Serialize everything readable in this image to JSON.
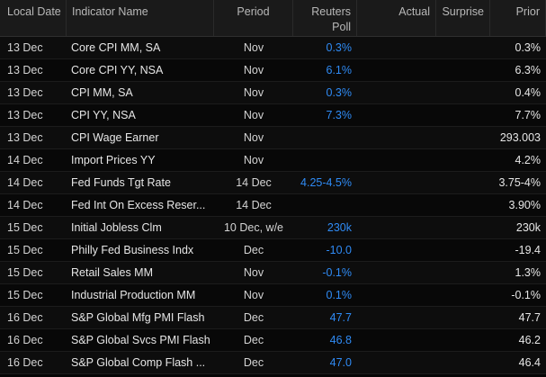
{
  "columns": {
    "date": "Local Date",
    "name": "Indicator Name",
    "period": "Period",
    "poll_line1": "Reuters",
    "poll_line2": "Poll",
    "actual": "Actual",
    "surprise": "Surprise",
    "prior": "Prior"
  },
  "colors": {
    "poll_value": "#2f8bf5",
    "header_bg": "#1a1a1a",
    "row_bg": "#0d0d0d"
  },
  "rows": [
    {
      "date": "13 Dec",
      "name": "Core CPI MM, SA",
      "period": "Nov",
      "poll": "0.3%",
      "actual": "",
      "surprise": "",
      "prior": "0.3%"
    },
    {
      "date": "13 Dec",
      "name": "Core CPI YY, NSA",
      "period": "Nov",
      "poll": "6.1%",
      "actual": "",
      "surprise": "",
      "prior": "6.3%"
    },
    {
      "date": "13 Dec",
      "name": "CPI MM, SA",
      "period": "Nov",
      "poll": "0.3%",
      "actual": "",
      "surprise": "",
      "prior": "0.4%"
    },
    {
      "date": "13 Dec",
      "name": "CPI YY, NSA",
      "period": "Nov",
      "poll": "7.3%",
      "actual": "",
      "surprise": "",
      "prior": "7.7%"
    },
    {
      "date": "13 Dec",
      "name": "CPI Wage Earner",
      "period": "Nov",
      "poll": "",
      "actual": "",
      "surprise": "",
      "prior": "293.003"
    },
    {
      "date": "14 Dec",
      "name": "Import Prices YY",
      "period": "Nov",
      "poll": "",
      "actual": "",
      "surprise": "",
      "prior": "4.2%"
    },
    {
      "date": "14 Dec",
      "name": "Fed Funds Tgt Rate",
      "period": "14 Dec",
      "poll": "4.25-4.5%",
      "actual": "",
      "surprise": "",
      "prior": "3.75-4%"
    },
    {
      "date": "14 Dec",
      "name": "Fed Int On Excess Reser...",
      "period": "14 Dec",
      "poll": "",
      "actual": "",
      "surprise": "",
      "prior": "3.90%"
    },
    {
      "date": "15 Dec",
      "name": "Initial Jobless Clm",
      "period": "10 Dec, w/e",
      "poll": "230k",
      "actual": "",
      "surprise": "",
      "prior": "230k"
    },
    {
      "date": "15 Dec",
      "name": "Philly Fed Business Indx",
      "period": "Dec",
      "poll": "-10.0",
      "actual": "",
      "surprise": "",
      "prior": "-19.4"
    },
    {
      "date": "15 Dec",
      "name": "Retail Sales MM",
      "period": "Nov",
      "poll": "-0.1%",
      "actual": "",
      "surprise": "",
      "prior": "1.3%"
    },
    {
      "date": "15 Dec",
      "name": "Industrial Production MM",
      "period": "Nov",
      "poll": "0.1%",
      "actual": "",
      "surprise": "",
      "prior": "-0.1%"
    },
    {
      "date": "16 Dec",
      "name": "S&P Global Mfg PMI Flash",
      "period": "Dec",
      "poll": "47.7",
      "actual": "",
      "surprise": "",
      "prior": "47.7"
    },
    {
      "date": "16 Dec",
      "name": "S&P Global Svcs PMI Flash",
      "period": "Dec",
      "poll": "46.8",
      "actual": "",
      "surprise": "",
      "prior": "46.2"
    },
    {
      "date": "16 Dec",
      "name": "S&P Global Comp Flash ...",
      "period": "Dec",
      "poll": "47.0",
      "actual": "",
      "surprise": "",
      "prior": "46.4"
    }
  ]
}
